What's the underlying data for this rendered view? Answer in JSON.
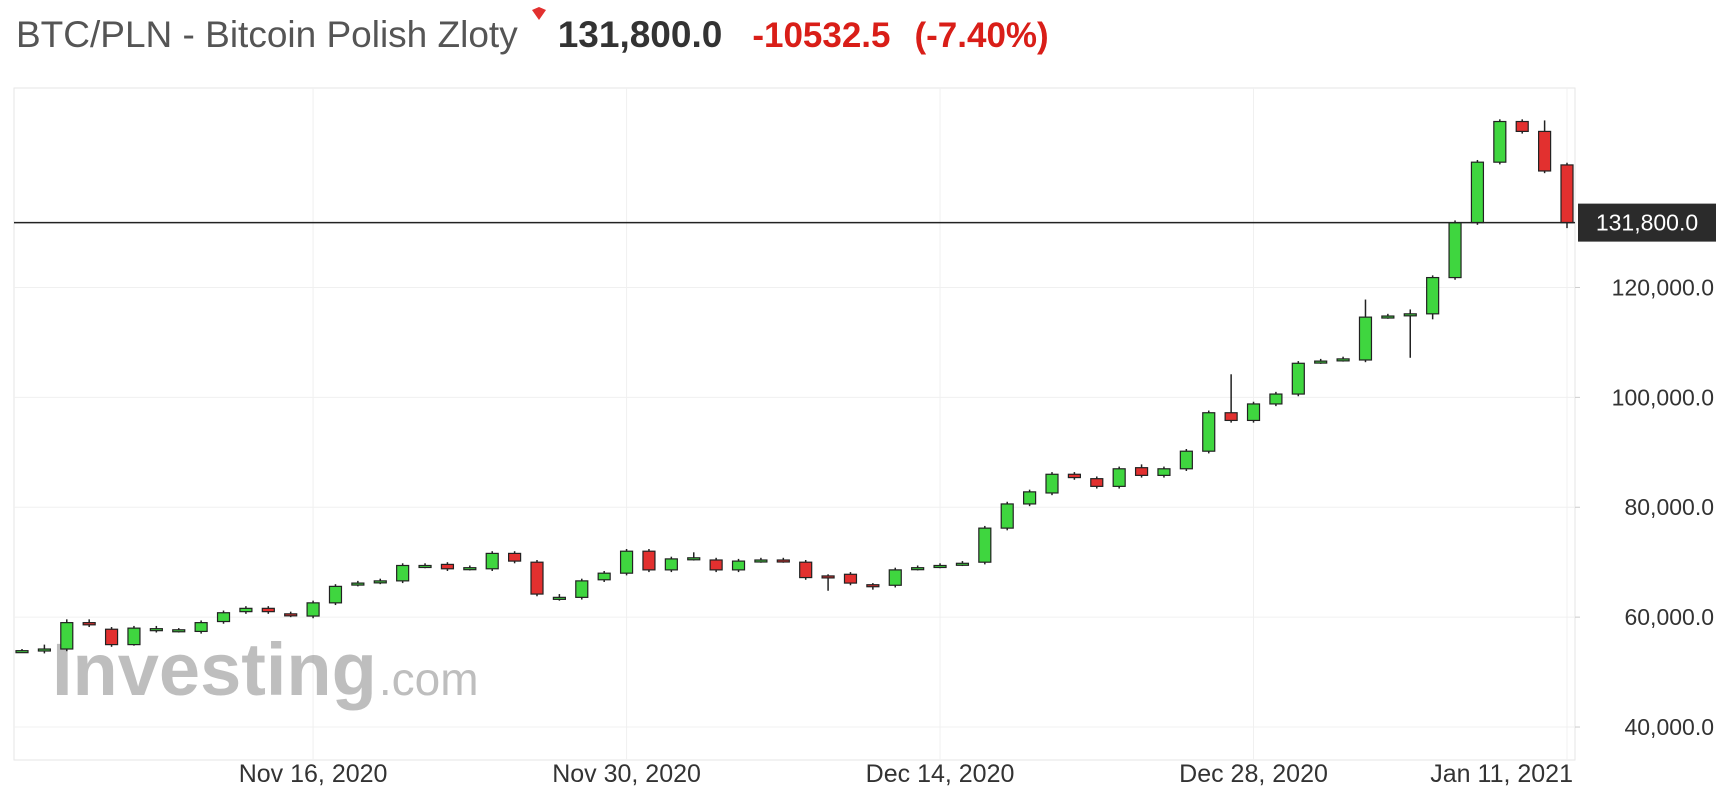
{
  "chart_data": {
    "type": "candlestick",
    "title": "BTC/PLN - Bitcoin Polish Zloty",
    "price": "131,800.0",
    "change": "-10532.5",
    "change_percent": "(-7.40%)",
    "watermark": {
      "brand": "Investing",
      "suffix": ".com"
    },
    "last_price": {
      "value": 131800,
      "label": "131,800.0"
    },
    "up_color": "#3fd63f",
    "down_color": "#e2302f",
    "grid": true,
    "x": [
      "2020-11-03",
      "2020-11-04",
      "2020-11-05",
      "2020-11-06",
      "2020-11-07",
      "2020-11-08",
      "2020-11-09",
      "2020-11-10",
      "2020-11-11",
      "2020-11-12",
      "2020-11-13",
      "2020-11-14",
      "2020-11-15",
      "2020-11-16",
      "2020-11-17",
      "2020-11-18",
      "2020-11-19",
      "2020-11-20",
      "2020-11-21",
      "2020-11-22",
      "2020-11-23",
      "2020-11-24",
      "2020-11-25",
      "2020-11-26",
      "2020-11-27",
      "2020-11-28",
      "2020-11-29",
      "2020-11-30",
      "2020-12-01",
      "2020-12-02",
      "2020-12-03",
      "2020-12-04",
      "2020-12-05",
      "2020-12-06",
      "2020-12-07",
      "2020-12-08",
      "2020-12-09",
      "2020-12-10",
      "2020-12-11",
      "2020-12-12",
      "2020-12-13",
      "2020-12-14",
      "2020-12-15",
      "2020-12-16",
      "2020-12-17",
      "2020-12-18",
      "2020-12-19",
      "2020-12-20",
      "2020-12-21",
      "2020-12-22",
      "2020-12-23",
      "2020-12-24",
      "2020-12-25",
      "2020-12-26",
      "2020-12-27",
      "2020-12-28",
      "2020-12-29",
      "2020-12-30",
      "2020-12-31",
      "2021-01-01",
      "2021-01-02",
      "2021-01-03",
      "2021-01-04",
      "2021-01-05",
      "2021-01-06",
      "2021-01-07",
      "2021-01-08",
      "2021-01-09",
      "2021-01-10",
      "2021-01-11"
    ],
    "open": [
      53800,
      53900,
      54200,
      59000,
      57800,
      55000,
      57800,
      57600,
      57400,
      59200,
      61000,
      61600,
      60600,
      60200,
      62600,
      66000,
      66400,
      66600,
      69300,
      69600,
      68900,
      68800,
      71600,
      70000,
      63400,
      63600,
      66800,
      68000,
      72000,
      68600,
      70700,
      70400,
      68600,
      70300,
      70400,
      70000,
      67500,
      67800,
      65900,
      65800,
      68900,
      69300,
      69700,
      70000,
      76200,
      80600,
      82600,
      86000,
      85200,
      83800,
      87200,
      85800,
      87000,
      90200,
      97200,
      95800,
      98800,
      100600,
      106500,
      106900,
      106800,
      114700,
      115100,
      115200,
      121800,
      131800,
      142800,
      150200,
      148400,
      142300
    ],
    "high": [
      54200,
      55000,
      59600,
      59600,
      58200,
      58400,
      58400,
      58000,
      59400,
      61200,
      62000,
      62000,
      61000,
      63000,
      66000,
      66600,
      67000,
      69800,
      69800,
      70000,
      69400,
      72000,
      72000,
      70400,
      64200,
      67000,
      68400,
      72400,
      72400,
      71000,
      71800,
      70800,
      70600,
      70800,
      70800,
      70400,
      67800,
      68200,
      66200,
      69000,
      69400,
      69800,
      70200,
      76600,
      81000,
      83200,
      86400,
      86400,
      85600,
      87400,
      87800,
      87400,
      90600,
      97600,
      104200,
      99200,
      101000,
      106600,
      107000,
      107400,
      117800,
      115200,
      116000,
      122200,
      132200,
      143200,
      150600,
      150600,
      150400,
      142700
    ],
    "low": [
      53500,
      53400,
      53800,
      58200,
      54600,
      54800,
      57200,
      57200,
      57000,
      58800,
      60600,
      60600,
      60000,
      59800,
      62200,
      65600,
      66000,
      66200,
      68900,
      68400,
      68500,
      68400,
      69800,
      63800,
      63000,
      63200,
      66400,
      67600,
      68200,
      68200,
      70300,
      68200,
      68200,
      69900,
      69900,
      66800,
      64800,
      65800,
      65000,
      65400,
      68500,
      68900,
      69300,
      69600,
      75800,
      80200,
      82200,
      85000,
      83400,
      83400,
      85400,
      85400,
      86600,
      89800,
      95400,
      95400,
      98400,
      100200,
      106100,
      106500,
      106400,
      114300,
      107200,
      114200,
      121400,
      131400,
      142400,
      148000,
      140800,
      130800
    ],
    "close": [
      53900,
      54200,
      59000,
      58600,
      55000,
      58000,
      57900,
      57700,
      59000,
      60800,
      61600,
      61000,
      60400,
      62600,
      65600,
      66200,
      66600,
      69400,
      69400,
      68800,
      69000,
      71600,
      70200,
      64200,
      63600,
      66600,
      68000,
      72000,
      68600,
      70600,
      70800,
      68600,
      70200,
      70400,
      70300,
      67200,
      67400,
      66200,
      65800,
      68600,
      69000,
      69400,
      69800,
      76200,
      80600,
      82800,
      86000,
      85400,
      83800,
      87000,
      85800,
      87000,
      90200,
      97200,
      95800,
      98800,
      100600,
      106200,
      106600,
      107000,
      114600,
      114800,
      115200,
      121800,
      131800,
      142800,
      150200,
      148400,
      141200,
      131800
    ],
    "ylim": [
      34000,
      156300
    ],
    "yticks": [
      {
        "value": 40000,
        "label": "40,000.0"
      },
      {
        "value": 60000,
        "label": "60,000.0"
      },
      {
        "value": 80000,
        "label": "80,000.0"
      },
      {
        "value": 100000,
        "label": "100,000.0"
      },
      {
        "value": 120000,
        "label": "120,000.0"
      }
    ],
    "xticks": [
      {
        "value": "2020-11-16",
        "label": "Nov 16, 2020"
      },
      {
        "value": "2020-11-30",
        "label": "Nov 30, 2020"
      },
      {
        "value": "2020-12-14",
        "label": "Dec 14, 2020"
      },
      {
        "value": "2020-12-28",
        "label": "Dec 28, 2020"
      },
      {
        "value": "2021-01-11",
        "label": "Jan 11, 2021"
      }
    ]
  }
}
